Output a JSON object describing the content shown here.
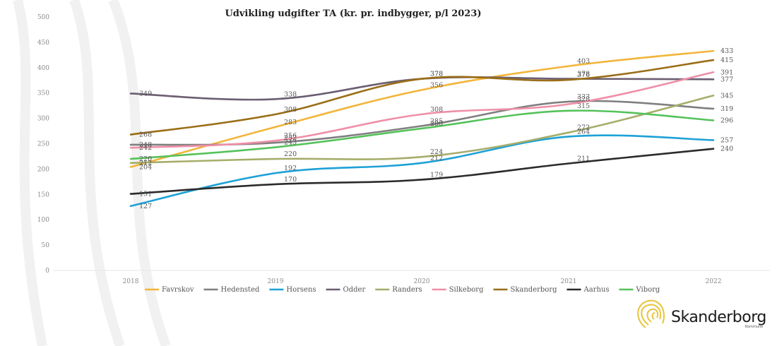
{
  "chart_data": {
    "type": "line",
    "title": "Udvikling udgifter TA (kr. pr. indbygger, p/l 2023)",
    "xlabel": "",
    "ylabel": "",
    "ylim": [
      0,
      500
    ],
    "yticks": [
      0,
      50,
      100,
      150,
      200,
      250,
      300,
      350,
      400,
      450,
      500
    ],
    "grid": false,
    "legend_position": "bottom",
    "x": [
      "2018",
      "2019",
      "2020",
      "2021",
      "2022"
    ],
    "series": [
      {
        "name": "Favrskov",
        "color": "#f2b53a",
        "values": [
          204,
          283,
          356,
          403,
          433
        ]
      },
      {
        "name": "Hedensted",
        "color": "#7f7f7f",
        "values": [
          248,
          252,
          285,
          333,
          319
        ]
      },
      {
        "name": "Horsens",
        "color": "#1da1d6",
        "values": [
          127,
          192,
          212,
          264,
          257
        ]
      },
      {
        "name": "Odder",
        "color": "#6b5e72",
        "values": [
          349,
          338,
          378,
          378,
          377
        ]
      },
      {
        "name": "Randers",
        "color": "#a6ad6a",
        "values": [
          212,
          220,
          224,
          272,
          345
        ]
      },
      {
        "name": "Silkeborg",
        "color": "#ef8fa8",
        "values": [
          242,
          256,
          308,
          328,
          391
        ]
      },
      {
        "name": "Skanderborg",
        "color": "#9a6e17",
        "values": [
          268,
          308,
          378,
          376,
          415
        ]
      },
      {
        "name": "Aarhus",
        "color": "#2b2b2b",
        "values": [
          151,
          170,
          179,
          211,
          240
        ]
      },
      {
        "name": "Viborg",
        "color": "#55c25a",
        "values": [
          220,
          243,
          280,
          315,
          296
        ]
      }
    ]
  },
  "logo": {
    "name": "Skanderborg",
    "sub": "Kommune"
  }
}
